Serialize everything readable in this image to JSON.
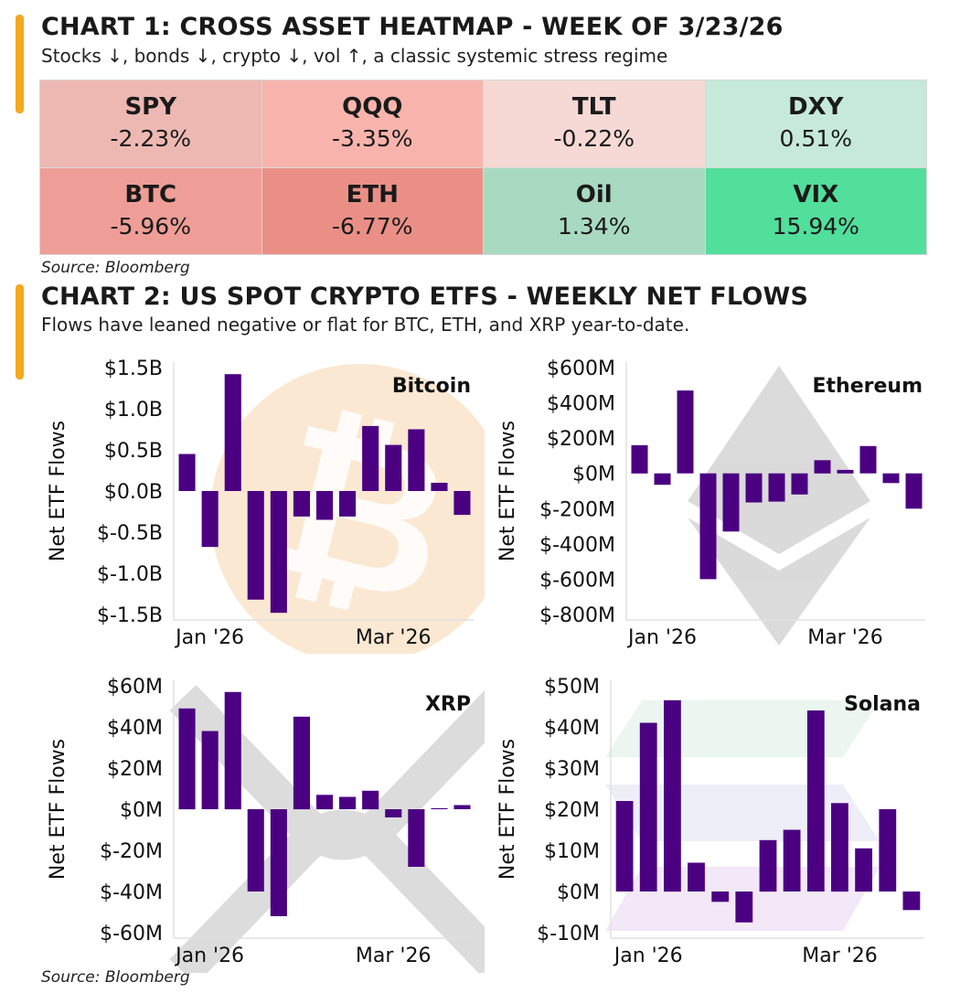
{
  "chart1": {
    "title": "CHART 1: CROSS ASSET HEATMAP - WEEK OF 3/23/26",
    "subtitle": "Stocks ↓, bonds ↓, crypto ↓, vol ↑, a classic systemic stress regime",
    "source": "Source: Bloomberg"
  },
  "chart2": {
    "title": "CHART 2: US SPOT CRYPTO ETFS - WEEKLY NET FLOWS",
    "subtitle": "Flows have leaned negative or flat for BTC, ETH, and XRP year-to-date.",
    "source": "Source: Bloomberg"
  },
  "chart_data": [
    {
      "type": "heatmap",
      "title": "CHART 1: CROSS ASSET HEATMAP - WEEK OF 3/23/26",
      "cells": [
        {
          "label": "SPY",
          "display": "-2.23%",
          "value": -2.23,
          "color": "#eeb8b2"
        },
        {
          "label": "QQQ",
          "display": "-3.35%",
          "value": -3.35,
          "color": "#f8b4ac"
        },
        {
          "label": "TLT",
          "display": "-0.22%",
          "value": -0.22,
          "color": "#f6d8d4"
        },
        {
          "label": "DXY",
          "display": "0.51%",
          "value": 0.51,
          "color": "#c6e9da"
        },
        {
          "label": "BTC",
          "display": "-5.96%",
          "value": -5.96,
          "color": "#ee9e97"
        },
        {
          "label": "ETH",
          "display": "-6.77%",
          "value": -6.77,
          "color": "#ea8f86"
        },
        {
          "label": "Oil",
          "display": "1.34%",
          "value": 1.34,
          "color": "#a8d9c1"
        },
        {
          "label": "VIX",
          "display": "15.94%",
          "value": 15.94,
          "color": "#52de9b"
        }
      ]
    },
    {
      "type": "bar",
      "name": "Bitcoin",
      "unit": "B",
      "bar_color": "#4b0082",
      "ylabel": "Net ETF Flows",
      "ylim": [
        -1.5,
        1.5
      ],
      "yticks": [
        1.5,
        1.0,
        0.5,
        0.0,
        -0.5,
        -1.0,
        -1.5
      ],
      "ytick_labels": [
        "$1.5B",
        "$1.0B",
        "$0.5B",
        "$0.0B",
        "$-0.5B",
        "$-1.0B",
        "$-1.5B"
      ],
      "xtick_labels": [
        "Jan '26",
        "Mar '26"
      ],
      "xtick_at_bar": [
        1,
        9
      ],
      "values": [
        0.45,
        -0.68,
        1.42,
        -1.32,
        -1.48,
        -0.31,
        -0.35,
        -0.31,
        0.79,
        0.56,
        0.75,
        0.1,
        -0.29
      ]
    },
    {
      "type": "bar",
      "name": "Ethereum",
      "unit": "M",
      "bar_color": "#4b0082",
      "ylabel": "Net ETF Flows",
      "ylim": [
        -800,
        600
      ],
      "yticks": [
        600,
        400,
        200,
        0,
        -200,
        -400,
        -600,
        -800
      ],
      "ytick_labels": [
        "$600M",
        "$400M",
        "$200M",
        "$0M",
        "$-200M",
        "$-400M",
        "$-600M",
        "$-800M"
      ],
      "xtick_labels": [
        "Jan '26",
        "Mar '26"
      ],
      "xtick_at_bar": [
        1,
        9
      ],
      "values": [
        160,
        -65,
        470,
        -600,
        -330,
        -165,
        -160,
        -120,
        75,
        20,
        155,
        -55,
        -200
      ]
    },
    {
      "type": "bar",
      "name": "XRP",
      "unit": "M",
      "bar_color": "#4b0082",
      "ylabel": "Net ETF Flows",
      "ylim": [
        -60,
        60
      ],
      "yticks": [
        60,
        40,
        20,
        0,
        -20,
        -40,
        -60
      ],
      "ytick_labels": [
        "$60M",
        "$40M",
        "$20M",
        "$0M",
        "$-20M",
        "$-40M",
        "$-60M"
      ],
      "xtick_labels": [
        "Jan '26",
        "Mar '26"
      ],
      "xtick_at_bar": [
        1,
        9
      ],
      "values": [
        49,
        38,
        57,
        -40,
        -52,
        45,
        7,
        6,
        9,
        -4,
        -28,
        0.5,
        2
      ]
    },
    {
      "type": "bar",
      "name": "Solana",
      "unit": "M",
      "bar_color": "#4b0082",
      "ylabel": "Net ETF Flows",
      "ylim": [
        -10,
        50
      ],
      "yticks": [
        50,
        40,
        30,
        20,
        10,
        0,
        -10
      ],
      "ytick_labels": [
        "$50M",
        "$40M",
        "$30M",
        "$20M",
        "$10M",
        "$0M",
        "$-10M"
      ],
      "xtick_labels": [
        "Jan '26",
        "Mar '26"
      ],
      "xtick_at_bar": [
        1,
        9
      ],
      "values": [
        22,
        41,
        46.5,
        7,
        -2.5,
        -7.5,
        12.5,
        15,
        44,
        21.5,
        10.5,
        20,
        -4.5
      ]
    }
  ]
}
